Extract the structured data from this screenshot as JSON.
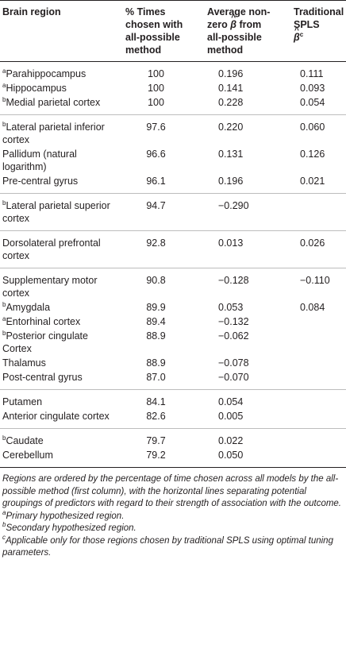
{
  "headers": {
    "col1": "Brain region",
    "col2": "% Times chosen with all-possible method",
    "col3_pre": "Average non-zero",
    "col3_beta": "β",
    "col3_post": "from all-possible method",
    "col4_text": "Traditional SPLS",
    "col4_beta": "β",
    "col4_sup": "c"
  },
  "groups": [
    {
      "rows": [
        {
          "sup": "a",
          "name": "Parahippocampus",
          "pct": "100",
          "avg": "0.196",
          "spls": "0.111"
        },
        {
          "sup": "a",
          "name": "Hippocampus",
          "pct": "100",
          "avg": "0.141",
          "spls": "0.093"
        },
        {
          "sup": "b",
          "name": "Medial parietal cortex",
          "pct": "100",
          "avg": "0.228",
          "spls": "0.054"
        }
      ]
    },
    {
      "rows": [
        {
          "sup": "b",
          "name": "Lateral parietal inferior cortex",
          "pct": "97.6",
          "avg": "0.220",
          "spls": "0.060"
        },
        {
          "sup": "",
          "name": "Pallidum (natural logarithm)",
          "pct": "96.6",
          "avg": "0.131",
          "spls": "0.126"
        },
        {
          "sup": "",
          "name": "Pre-central gyrus",
          "pct": "96.1",
          "avg": "0.196",
          "spls": "0.021"
        }
      ]
    },
    {
      "rows": [
        {
          "sup": "b",
          "name": "Lateral parietal superior cortex",
          "pct": "94.7",
          "avg": "−0.290",
          "spls": ""
        }
      ]
    },
    {
      "rows": [
        {
          "sup": "",
          "name": "Dorsolateral prefrontal cortex",
          "pct": "92.8",
          "avg": "0.013",
          "spls": "0.026"
        }
      ]
    },
    {
      "rows": [
        {
          "sup": "",
          "name": "Supplementary motor cortex",
          "pct": "90.8",
          "avg": "−0.128",
          "spls": "−0.110"
        },
        {
          "sup": "b",
          "name": "Amygdala",
          "pct": "89.9",
          "avg": "0.053",
          "spls": "0.084"
        },
        {
          "sup": "a",
          "name": "Entorhinal cortex",
          "pct": "89.4",
          "avg": "−0.132",
          "spls": ""
        },
        {
          "sup": "b",
          "name": "Posterior cingulate Cortex",
          "pct": "88.9",
          "avg": "−0.062",
          "spls": ""
        },
        {
          "sup": "",
          "name": "Thalamus",
          "pct": "88.9",
          "avg": "−0.078",
          "spls": ""
        },
        {
          "sup": "",
          "name": "Post-central gyrus",
          "pct": "87.0",
          "avg": "−0.070",
          "spls": ""
        }
      ]
    },
    {
      "rows": [
        {
          "sup": "",
          "name": "Putamen",
          "pct": "84.1",
          "avg": "0.054",
          "spls": ""
        },
        {
          "sup": "",
          "name": "Anterior cingulate cortex",
          "pct": "82.6",
          "avg": "0.005",
          "spls": ""
        }
      ]
    },
    {
      "rows": [
        {
          "sup": "b",
          "name": "Caudate",
          "pct": "79.7",
          "avg": "0.022",
          "spls": ""
        },
        {
          "sup": "",
          "name": "Cerebellum",
          "pct": "79.2",
          "avg": "0.050",
          "spls": ""
        }
      ]
    }
  ],
  "notes": {
    "main": "Regions are ordered by the percentage of time chosen across all models by the all-possible method (first column), with the horizontal lines separating potential groupings of predictors with regard to their strength of association with the outcome.",
    "a_sup": "a",
    "a_text": "Primary hypothesized region.",
    "b_sup": "b",
    "b_text": "Secondary hypothesized region.",
    "c_sup": "c",
    "c_text": "Applicable only for those regions chosen by traditional SPLS using optimal tuning parameters."
  }
}
